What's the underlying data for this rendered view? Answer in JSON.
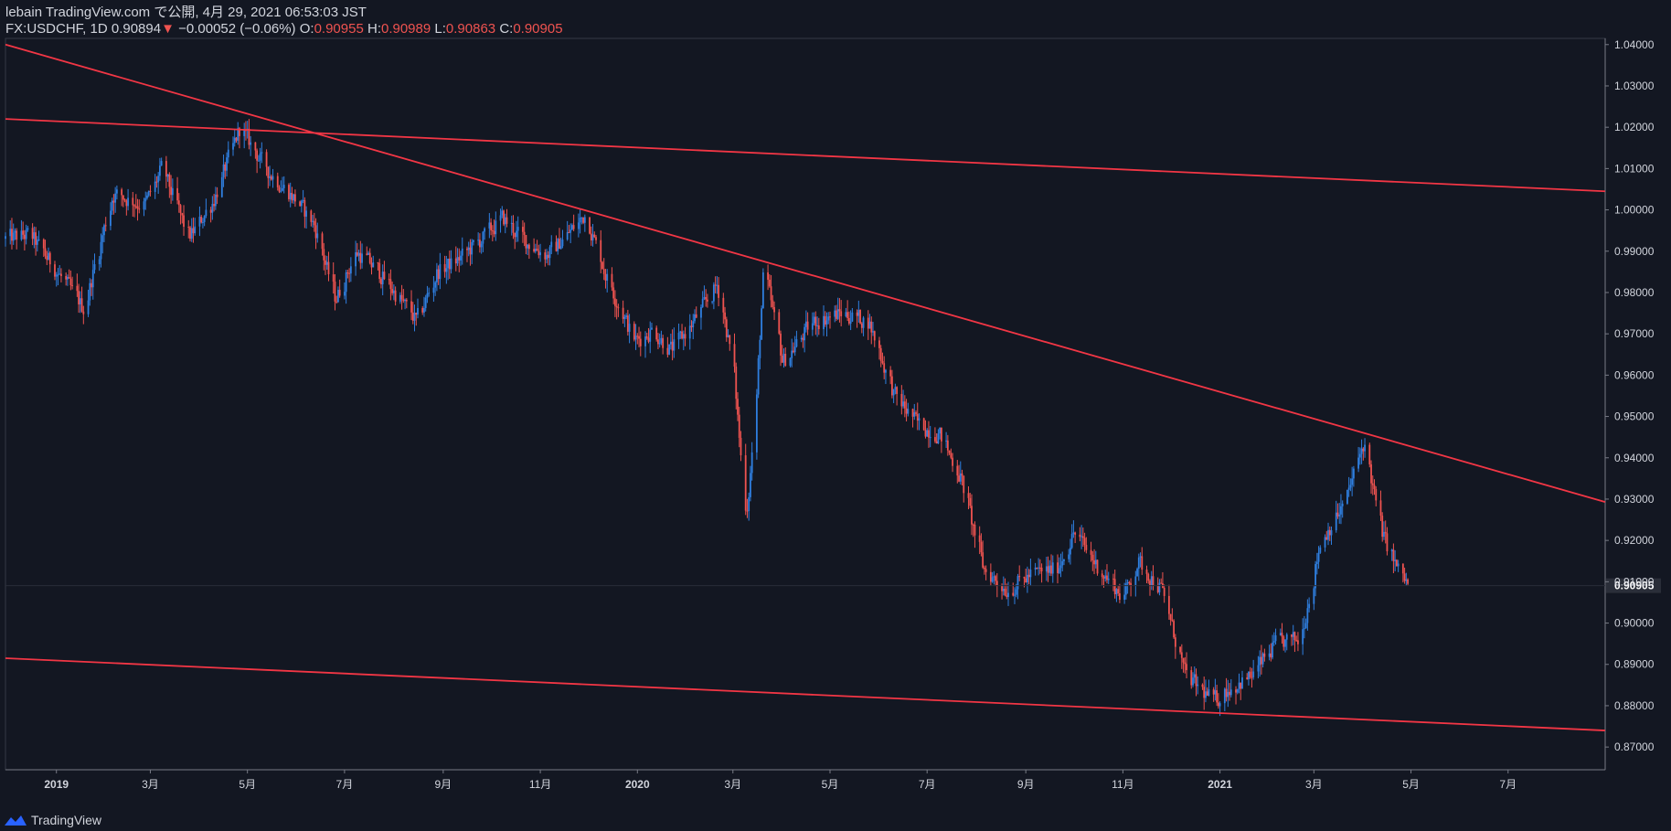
{
  "header": {
    "publish_line": "lebain TradingView.com で公開, 4月 29, 2021 06:53:03 JST",
    "symbol": "FX:USDCHF, 1D",
    "last": "0.90894",
    "arrow": "▼",
    "change": "−0.00052 (−0.06%)",
    "o_label": "O:",
    "o": "0.90955",
    "h_label": "H:",
    "h": "0.90989",
    "l_label": "L:",
    "l": "0.90863",
    "c_label": "C:",
    "c": "0.90905"
  },
  "footer": {
    "brand": "TradingView"
  },
  "colors": {
    "up": "#2f7fe0",
    "down": "#ef5350",
    "trendline": "#f23645",
    "background": "#131722"
  },
  "chart_data": {
    "type": "candlestick",
    "symbol": "USDCHF",
    "interval": "1D",
    "current_price": 0.90905,
    "current_price_label": "0.90905",
    "y_ticks": [
      "1.04000",
      "1.03000",
      "1.02000",
      "1.01000",
      "1.00000",
      "0.99000",
      "0.98000",
      "0.97000",
      "0.96000",
      "0.95000",
      "0.94000",
      "0.93000",
      "0.92000",
      "0.91000",
      "0.90000",
      "0.89000",
      "0.88000",
      "0.87000"
    ],
    "ylim": [
      0.8645,
      1.0415
    ],
    "x_ticks": [
      "2019",
      "3月",
      "5月",
      "7月",
      "9月",
      "11月",
      "2020",
      "3月",
      "5月",
      "7月",
      "9月",
      "11月",
      "2021",
      "3月",
      "5月",
      "7月"
    ],
    "x_tick_dates": [
      "2019-01-01",
      "2019-03-01",
      "2019-05-01",
      "2019-07-01",
      "2019-09-01",
      "2019-11-01",
      "2020-01-01",
      "2020-03-01",
      "2020-05-01",
      "2020-07-01",
      "2020-09-01",
      "2020-11-01",
      "2021-01-01",
      "2021-03-01",
      "2021-05-01",
      "2021-07-01"
    ],
    "xlim": [
      "2018-11-30",
      "2021-08-31"
    ],
    "path": [
      [
        "2018-11-30",
        0.993
      ],
      [
        "2018-12-15",
        0.994
      ],
      [
        "2019-01-01",
        0.985
      ],
      [
        "2019-01-18",
        0.976
      ],
      [
        "2019-02-05",
        1.004
      ],
      [
        "2019-02-25",
        1.001
      ],
      [
        "2019-03-08",
        1.01
      ],
      [
        "2019-03-25",
        0.993
      ],
      [
        "2019-04-10",
        1.003
      ],
      [
        "2019-04-26",
        1.02
      ],
      [
        "2019-05-12",
        1.01
      ],
      [
        "2019-06-01",
        1.002
      ],
      [
        "2019-06-12",
        0.996
      ],
      [
        "2019-06-25",
        0.978
      ],
      [
        "2019-07-08",
        0.99
      ],
      [
        "2019-07-22",
        0.985
      ],
      [
        "2019-08-05",
        0.978
      ],
      [
        "2019-08-15",
        0.973
      ],
      [
        "2019-08-28",
        0.985
      ],
      [
        "2019-09-10",
        0.988
      ],
      [
        "2019-09-25",
        0.993
      ],
      [
        "2019-10-08",
        0.998
      ],
      [
        "2019-10-20",
        0.993
      ],
      [
        "2019-11-05",
        0.989
      ],
      [
        "2019-11-20",
        0.995
      ],
      [
        "2019-11-29",
        0.999
      ],
      [
        "2019-12-12",
        0.984
      ],
      [
        "2019-12-30",
        0.968
      ],
      [
        "2020-01-10",
        0.971
      ],
      [
        "2020-01-22",
        0.966
      ],
      [
        "2020-02-05",
        0.973
      ],
      [
        "2020-02-20",
        0.982
      ],
      [
        "2020-03-01",
        0.962
      ],
      [
        "2020-03-09",
        0.924
      ],
      [
        "2020-03-15",
        0.953
      ],
      [
        "2020-03-20",
        0.986
      ],
      [
        "2020-04-01",
        0.963
      ],
      [
        "2020-04-20",
        0.973
      ],
      [
        "2020-05-08",
        0.975
      ],
      [
        "2020-05-25",
        0.973
      ],
      [
        "2020-06-10",
        0.955
      ],
      [
        "2020-06-25",
        0.948
      ],
      [
        "2020-07-08",
        0.946
      ],
      [
        "2020-07-22",
        0.935
      ],
      [
        "2020-08-05",
        0.913
      ],
      [
        "2020-08-20",
        0.908
      ],
      [
        "2020-09-05",
        0.912
      ],
      [
        "2020-09-20",
        0.913
      ],
      [
        "2020-10-01",
        0.922
      ],
      [
        "2020-10-15",
        0.914
      ],
      [
        "2020-11-01",
        0.906
      ],
      [
        "2020-11-10",
        0.915
      ],
      [
        "2020-11-25",
        0.908
      ],
      [
        "2020-12-10",
        0.887
      ],
      [
        "2020-12-28",
        0.881
      ],
      [
        "2021-01-05",
        0.884
      ],
      [
        "2021-01-20",
        0.887
      ],
      [
        "2021-02-05",
        0.895
      ],
      [
        "2021-02-20",
        0.896
      ],
      [
        "2021-03-05",
        0.92
      ],
      [
        "2021-03-20",
        0.929
      ],
      [
        "2021-04-01",
        0.944
      ],
      [
        "2021-04-12",
        0.922
      ],
      [
        "2021-04-22",
        0.913
      ],
      [
        "2021-04-29",
        0.909
      ]
    ],
    "trendlines": [
      {
        "from": [
          "2018-11-30",
          1.04
        ],
        "to": [
          "2021-08-31",
          0.9293
        ]
      },
      {
        "from": [
          "2018-11-30",
          1.022
        ],
        "to": [
          "2021-08-31",
          1.0045
        ]
      },
      {
        "from": [
          "2018-11-30",
          0.8915
        ],
        "to": [
          "2021-08-31",
          0.874
        ]
      }
    ]
  }
}
